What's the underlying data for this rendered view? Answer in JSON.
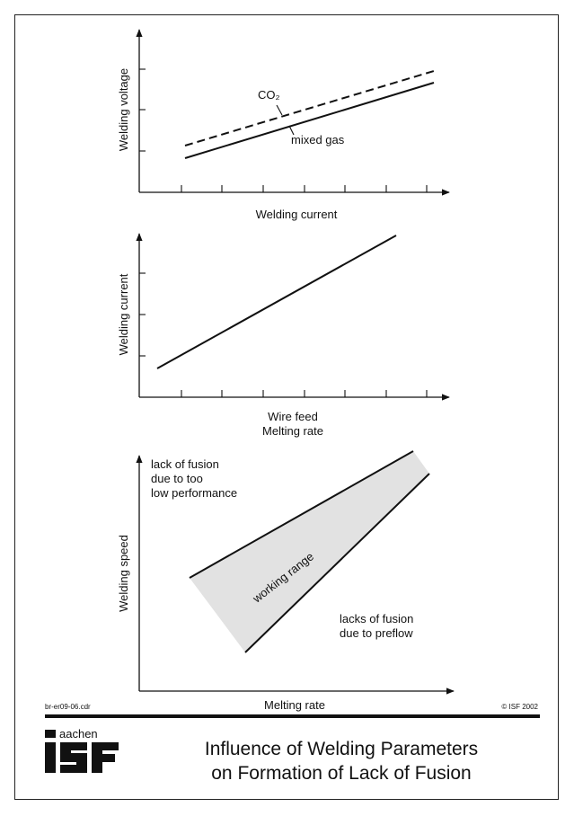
{
  "figure": {
    "chart1": {
      "ylabel": "Welding voltage",
      "xlabel": "Welding current",
      "series": [
        {
          "label": "CO₂",
          "style": "dashed"
        },
        {
          "label": "mixed gas",
          "style": "solid"
        }
      ]
    },
    "chart2": {
      "ylabel": "Welding current",
      "xlabel_line1": "Wire feed",
      "xlabel_line2": "Melting rate"
    },
    "chart3": {
      "ylabel": "Welding speed",
      "xlabel": "Melting rate",
      "zone_label": "working range",
      "upper_note": [
        "lack of fusion",
        "due to too",
        "low performance"
      ],
      "lower_note": [
        "lacks of fusion",
        "due to preflow"
      ]
    }
  },
  "footer": {
    "file_ref": "br-er09-06.cdr",
    "copyright": "© ISF 2002",
    "logo_text_small": "aachen",
    "logo_text_big": "ISF",
    "title_line1": "Influence of Welding Parameters",
    "title_line2": "on Formation of Lack of Fusion"
  },
  "colors": {
    "line": "#111111",
    "zone_fill": "#e2e2e2"
  }
}
